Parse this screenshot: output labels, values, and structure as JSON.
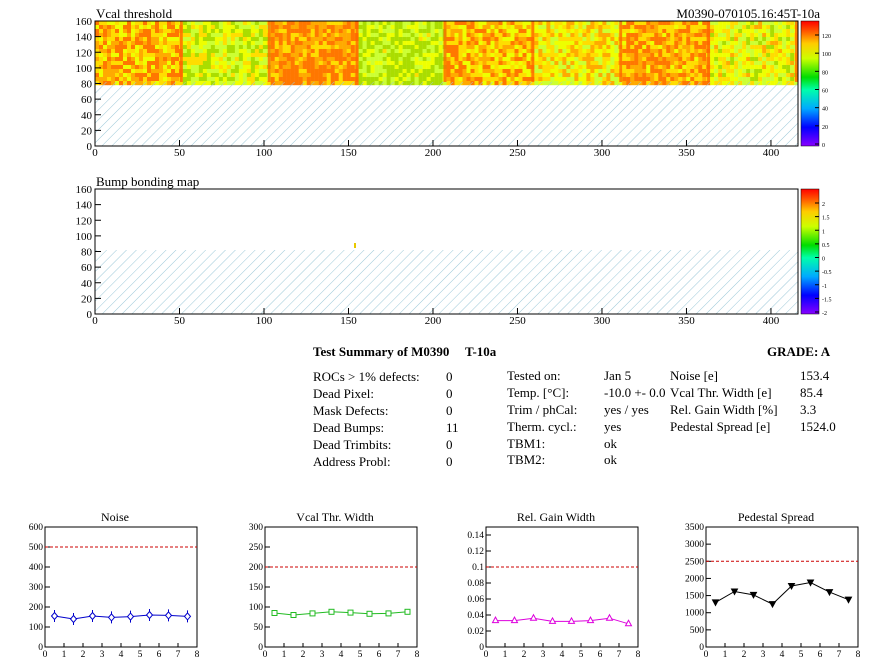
{
  "maps": [
    {
      "title": "Vcal threshold",
      "subtitle": "M0390-070105.16:45T-10a",
      "x_ticks": [
        "0",
        "50",
        "100",
        "150",
        "200",
        "250",
        "300",
        "350",
        "400"
      ],
      "y_ticks": [
        "0",
        "20",
        "40",
        "60",
        "80",
        "100",
        "120",
        "140",
        "160"
      ],
      "z_ticks": [
        "0",
        "20",
        "40",
        "60",
        "80",
        "100",
        "120"
      ]
    },
    {
      "title": "Bump bonding map",
      "x_ticks": [
        "0",
        "50",
        "100",
        "150",
        "200",
        "250",
        "300",
        "350",
        "400"
      ],
      "y_ticks": [
        "0",
        "20",
        "40",
        "60",
        "80",
        "100",
        "120",
        "140",
        "160"
      ],
      "z_ticks": [
        "-2",
        "-1.5",
        "-1",
        "-0.5",
        "0",
        "0.5",
        "1",
        "1.5",
        "2"
      ]
    }
  ],
  "summary": {
    "title": "Test Summary of M0390",
    "temp": "T-10a",
    "grade": "GRADE:  A",
    "defects": [
      {
        "label": "ROCs > 1% defects:",
        "value": "0"
      },
      {
        "label": "Dead Pixel:",
        "value": "0"
      },
      {
        "label": "Mask Defects:",
        "value": "0"
      },
      {
        "label": "Dead Bumps:",
        "value": "11"
      },
      {
        "label": "Dead Trimbits:",
        "value": "0"
      },
      {
        "label": "Address Probl:",
        "value": "0"
      }
    ],
    "tests": [
      {
        "label": "Tested on:",
        "value": "Jan 5"
      },
      {
        "label": "Temp. [°C]:",
        "value": "-10.0 +- 0.0"
      },
      {
        "label": "Trim / phCal:",
        "value": "yes / yes"
      },
      {
        "label": "Therm. cycl.:",
        "value": "yes"
      },
      {
        "label": "TBM1:",
        "value": "ok"
      },
      {
        "label": "TBM2:",
        "value": "ok"
      }
    ],
    "params": [
      {
        "label": "Noise [e]",
        "value": "153.4"
      },
      {
        "label": "Vcal Thr. Width [e]",
        "value": "85.4"
      },
      {
        "label": "Rel. Gain Width [%]",
        "value": "3.3"
      },
      {
        "label": "Pedestal Spread [e]",
        "value": "1524.0"
      }
    ]
  },
  "chart_data": [
    {
      "type": "scatter",
      "title": "Noise",
      "x": [
        0.5,
        1.5,
        2.5,
        3.5,
        4.5,
        5.5,
        6.5,
        7.5
      ],
      "y": [
        155,
        140,
        155,
        148,
        152,
        160,
        158,
        153
      ],
      "xlim": [
        0,
        8
      ],
      "ylim": [
        0,
        600
      ],
      "y_ticks": [
        "0",
        "100",
        "200",
        "300",
        "400",
        "500",
        "600"
      ],
      "x_ticks": [
        "0",
        "1",
        "2",
        "3",
        "4",
        "5",
        "6",
        "7",
        "8"
      ],
      "threshold": 500,
      "color": "#0000cc",
      "marker": "diamond"
    },
    {
      "type": "scatter",
      "title": "Vcal Thr. Width",
      "x": [
        0.5,
        1.5,
        2.5,
        3.5,
        4.5,
        5.5,
        6.5,
        7.5
      ],
      "y": [
        85,
        80,
        84,
        88,
        86,
        83,
        84,
        88
      ],
      "xlim": [
        0,
        8
      ],
      "ylim": [
        0,
        300
      ],
      "y_ticks": [
        "0",
        "50",
        "100",
        "150",
        "200",
        "250",
        "300"
      ],
      "x_ticks": [
        "0",
        "1",
        "2",
        "3",
        "4",
        "5",
        "6",
        "7",
        "8"
      ],
      "threshold": 200,
      "color": "#22bb22",
      "marker": "square"
    },
    {
      "type": "scatter",
      "title": "Rel. Gain Width",
      "x": [
        0.5,
        1.5,
        2.5,
        3.5,
        4.5,
        5.5,
        6.5,
        7.5
      ],
      "y": [
        0.033,
        0.033,
        0.036,
        0.032,
        0.032,
        0.033,
        0.036,
        0.029
      ],
      "xlim": [
        0,
        8
      ],
      "ylim": [
        0,
        0.15
      ],
      "y_ticks": [
        "0",
        "0.02",
        "0.04",
        "0.06",
        "0.08",
        "0.1",
        "0.12",
        "0.14"
      ],
      "x_ticks": [
        "0",
        "1",
        "2",
        "3",
        "4",
        "5",
        "6",
        "7",
        "8"
      ],
      "threshold": 0.1,
      "color": "#dd00dd",
      "marker": "triangle"
    },
    {
      "type": "scatter",
      "title": "Pedestal Spread",
      "x": [
        0.5,
        1.5,
        2.5,
        3.5,
        4.5,
        5.5,
        6.5,
        7.5
      ],
      "y": [
        1300,
        1620,
        1520,
        1250,
        1780,
        1880,
        1600,
        1380
      ],
      "xlim": [
        0,
        8
      ],
      "ylim": [
        0,
        3500
      ],
      "y_ticks": [
        "0",
        "500",
        "1000",
        "1500",
        "2000",
        "2500",
        "3000",
        "3500"
      ],
      "x_ticks": [
        "0",
        "1",
        "2",
        "3",
        "4",
        "5",
        "6",
        "7",
        "8"
      ],
      "threshold": 2500,
      "color": "#000000",
      "marker": "triangle-down"
    }
  ]
}
